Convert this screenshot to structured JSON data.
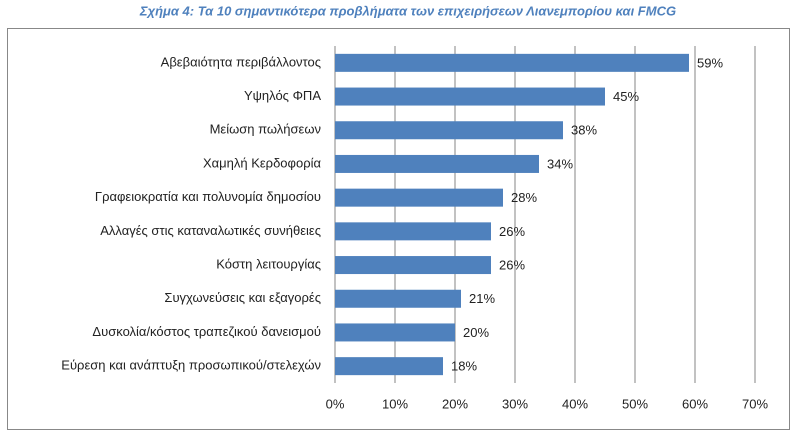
{
  "chart_data": {
    "type": "bar",
    "orientation": "horizontal",
    "title": "Σχήμα 4: Τα 10 σημαντικότερα προβλήματα των επιχειρήσεων Λιανεμπορίου και FMCG",
    "categories": [
      "Αβεβαιότητα περιβάλλοντος",
      "Υψηλός ΦΠΑ",
      "Μείωση πωλήσεων",
      "Χαμηλή Κερδοφορία",
      "Γραφειοκρατία και πολυνομία δημοσίου",
      "Αλλαγές στις καταναλωτικές συνήθειες",
      "Κόστη λειτουργίας",
      "Συγχωνεύσεις και εξαγορές",
      "Δυσκολία/κόστος τραπεζικού δανεισμού",
      "Εύρεση και ανάπτυξη προσωπικού/στελεχών"
    ],
    "values": [
      59,
      45,
      38,
      34,
      28,
      26,
      26,
      21,
      20,
      18
    ],
    "value_labels": [
      "59%",
      "45%",
      "38%",
      "34%",
      "28%",
      "26%",
      "26%",
      "21%",
      "20%",
      "18%"
    ],
    "color": "#4f81bd",
    "xlim": [
      0,
      70
    ],
    "xticks": [
      {
        "value": 0,
        "label": "0%"
      },
      {
        "value": 10,
        "label": "10%"
      },
      {
        "value": 20,
        "label": "20%"
      },
      {
        "value": 30,
        "label": "30%"
      },
      {
        "value": 40,
        "label": "40%"
      },
      {
        "value": 50,
        "label": "50%"
      },
      {
        "value": 60,
        "label": "60%"
      },
      {
        "value": 70,
        "label": "70%"
      }
    ],
    "grid": true
  }
}
